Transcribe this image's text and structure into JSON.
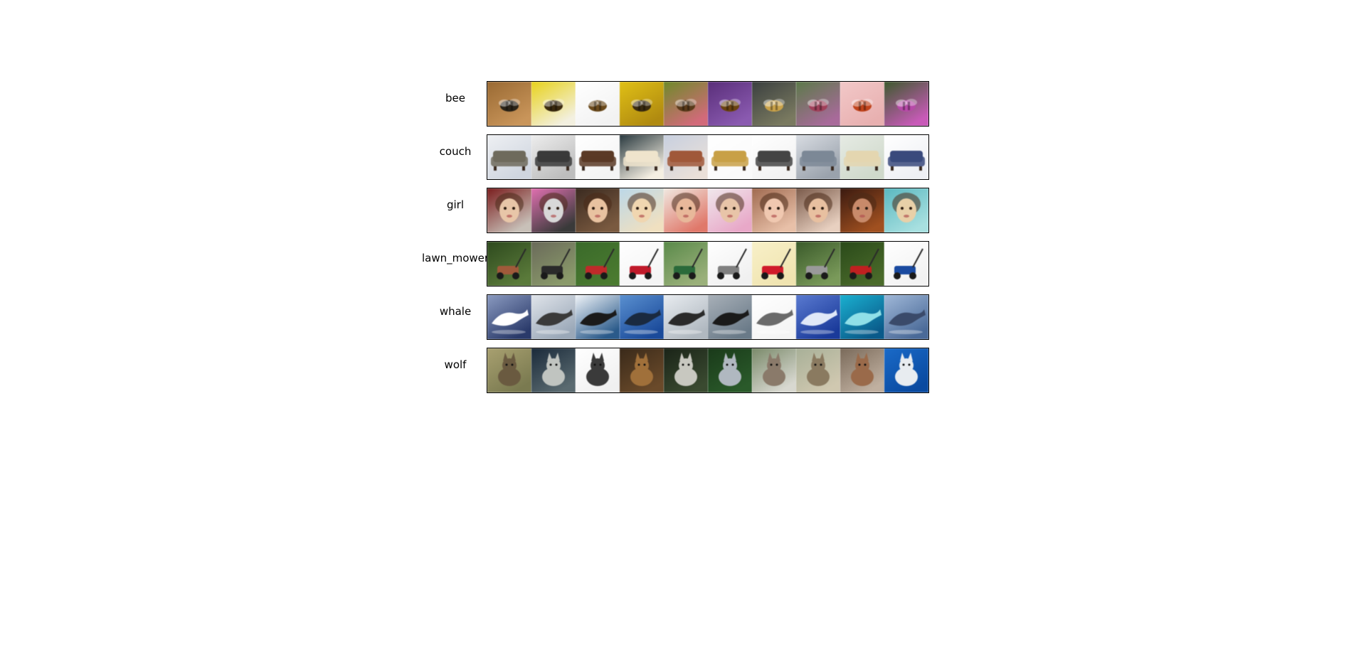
{
  "rows": [
    {
      "label": "bee",
      "tiles": [
        {
          "subject": "bee",
          "bg": [
            "#9a6a33",
            "#c9955a"
          ],
          "fg": "#2b2418"
        },
        {
          "subject": "bee",
          "bg": [
            "#e8d21c",
            "#f3f0e0"
          ],
          "fg": "#3a2a0e"
        },
        {
          "subject": "bee",
          "bg": [
            "#ffffff",
            "#f2f2f2"
          ],
          "fg": "#6b4a1c"
        },
        {
          "subject": "bee",
          "bg": [
            "#e0c016",
            "#b08a10"
          ],
          "fg": "#3a2b10"
        },
        {
          "subject": "bee",
          "bg": [
            "#6f8a2a",
            "#d26a7a"
          ],
          "fg": "#5a3a1a"
        },
        {
          "subject": "bee",
          "bg": [
            "#5a2f7a",
            "#8a5ab0"
          ],
          "fg": "#6a4210"
        },
        {
          "subject": "bee",
          "bg": [
            "#3b4040",
            "#7a7a60"
          ],
          "fg": "#c9a24a"
        },
        {
          "subject": "bee",
          "bg": [
            "#5c7a4a",
            "#a86a9a"
          ],
          "fg": "#a0405a"
        },
        {
          "subject": "bee",
          "bg": [
            "#f2c8c8",
            "#e8b0b0"
          ],
          "fg": "#c0431c"
        },
        {
          "subject": "bee",
          "bg": [
            "#3e5a2e",
            "#c85ab8"
          ],
          "fg": "#b74aa8"
        }
      ]
    },
    {
      "label": "couch",
      "tiles": [
        {
          "subject": "couch",
          "bg": [
            "#eef0f3",
            "#cfd5df"
          ],
          "fg": "#6e6a5c"
        },
        {
          "subject": "couch",
          "bg": [
            "#ededed",
            "#bdbdbd"
          ],
          "fg": "#3a3a3a"
        },
        {
          "subject": "couch",
          "bg": [
            "#ffffff",
            "#f4f4f4"
          ],
          "fg": "#5b3a26"
        },
        {
          "subject": "couch",
          "bg": [
            "#2a3a40",
            "#f5efe2"
          ],
          "fg": "#efe4cc"
        },
        {
          "subject": "couch",
          "bg": [
            "#c8d0e0",
            "#eae0d8"
          ],
          "fg": "#a0583a"
        },
        {
          "subject": "couch",
          "bg": [
            "#ffffff",
            "#fafafa"
          ],
          "fg": "#c8a046"
        },
        {
          "subject": "couch",
          "bg": [
            "#ffffff",
            "#f2f2f2"
          ],
          "fg": "#444444"
        },
        {
          "subject": "couch",
          "bg": [
            "#d8dce2",
            "#9aa2ac"
          ],
          "fg": "#7c8896"
        },
        {
          "subject": "couch",
          "bg": [
            "#e6ebe4",
            "#cfd9cb"
          ],
          "fg": "#e4d6b0"
        },
        {
          "subject": "couch",
          "bg": [
            "#ffffff",
            "#eef0f4"
          ],
          "fg": "#3a4a7c"
        }
      ]
    },
    {
      "label": "girl",
      "tiles": [
        {
          "subject": "face",
          "bg": [
            "#7a1e1e",
            "#c8c0b8"
          ],
          "fg": "#e8c6a8"
        },
        {
          "subject": "face",
          "bg": [
            "#e070b0",
            "#3a3a3a"
          ],
          "fg": "#d8d8d8"
        },
        {
          "subject": "face",
          "bg": [
            "#3a2a20",
            "#7a5a40"
          ],
          "fg": "#e8c2a0"
        },
        {
          "subject": "face",
          "bg": [
            "#bcd8e8",
            "#f0e0c0"
          ],
          "fg": "#f0d6b0"
        },
        {
          "subject": "face",
          "bg": [
            "#f0e8e0",
            "#e0786a"
          ],
          "fg": "#e8b89a"
        },
        {
          "subject": "face",
          "bg": [
            "#f0e8ec",
            "#e8a8c8"
          ],
          "fg": "#e8c4a8"
        },
        {
          "subject": "face",
          "bg": [
            "#a06a50",
            "#e8c0a8"
          ],
          "fg": "#f0c8b0"
        },
        {
          "subject": "face",
          "bg": [
            "#7a5a4a",
            "#e8d0c0"
          ],
          "fg": "#e8c0a0"
        },
        {
          "subject": "face",
          "bg": [
            "#3a1a10",
            "#a05020"
          ],
          "fg": "#c88a6a"
        },
        {
          "subject": "face",
          "bg": [
            "#5ab8c0",
            "#a8e0e0"
          ],
          "fg": "#e8d0a8"
        }
      ]
    },
    {
      "label": "lawn_mower",
      "tiles": [
        {
          "subject": "mower",
          "bg": [
            "#2e4a1e",
            "#5a7a3a"
          ],
          "fg": "#a05a3a"
        },
        {
          "subject": "mower",
          "bg": [
            "#6a6a5a",
            "#8a9a6a"
          ],
          "fg": "#2a2a2a"
        },
        {
          "subject": "mower",
          "bg": [
            "#3a6a2a",
            "#4a7a30"
          ],
          "fg": "#c02a2a"
        },
        {
          "subject": "mower",
          "bg": [
            "#ffffff",
            "#f4f4f4"
          ],
          "fg": "#c01a2a"
        },
        {
          "subject": "mower",
          "bg": [
            "#5a8a4a",
            "#9ab07a"
          ],
          "fg": "#2a6a3a"
        },
        {
          "subject": "mower",
          "bg": [
            "#ffffff",
            "#f0f0f0"
          ],
          "fg": "#808080"
        },
        {
          "subject": "mower",
          "bg": [
            "#f8f0c8",
            "#f0e4b0"
          ],
          "fg": "#d01a2a"
        },
        {
          "subject": "mower",
          "bg": [
            "#3a5a2a",
            "#7a9a5a"
          ],
          "fg": "#9a9a9a"
        },
        {
          "subject": "mower",
          "bg": [
            "#2a4a1a",
            "#4a6a2a"
          ],
          "fg": "#c02020"
        },
        {
          "subject": "mower",
          "bg": [
            "#ffffff",
            "#f2f2f2"
          ],
          "fg": "#1a4aa0"
        }
      ]
    },
    {
      "label": "whale",
      "tiles": [
        {
          "subject": "whale",
          "bg": [
            "#8a9ac0",
            "#2a3a6a"
          ],
          "fg": "#ffffff"
        },
        {
          "subject": "whale",
          "bg": [
            "#e0e4ea",
            "#9aa8b8"
          ],
          "fg": "#3a3a3a"
        },
        {
          "subject": "whale",
          "bg": [
            "#f0f4f8",
            "#2a5a8a"
          ],
          "fg": "#1a1a1a"
        },
        {
          "subject": "whale",
          "bg": [
            "#5a90d0",
            "#1a4a9a"
          ],
          "fg": "#1a2a40"
        },
        {
          "subject": "whale",
          "bg": [
            "#e8ecf0",
            "#b0b8c0"
          ],
          "fg": "#2a2a2a"
        },
        {
          "subject": "whale",
          "bg": [
            "#a8b0b8",
            "#6a7a88"
          ],
          "fg": "#1a1a1a"
        },
        {
          "subject": "whale",
          "bg": [
            "#ffffff",
            "#f4f4f4"
          ],
          "fg": "#6a6a6a"
        },
        {
          "subject": "whale",
          "bg": [
            "#5a7ad0",
            "#1a3a9a"
          ],
          "fg": "#e0e8f8"
        },
        {
          "subject": "whale",
          "bg": [
            "#1ab0d0",
            "#0a5a8a"
          ],
          "fg": "#90e0e8"
        },
        {
          "subject": "whale",
          "bg": [
            "#a0b8d8",
            "#4a6a98"
          ],
          "fg": "#3a4a6a"
        }
      ]
    },
    {
      "label": "wolf",
      "tiles": [
        {
          "subject": "wolf",
          "bg": [
            "#a8a070",
            "#7a7a50"
          ],
          "fg": "#6a5a40"
        },
        {
          "subject": "wolf",
          "bg": [
            "#1a2a3a",
            "#5a6a70"
          ],
          "fg": "#c0c4c0"
        },
        {
          "subject": "wolf",
          "bg": [
            "#ffffff",
            "#f0f0f0"
          ],
          "fg": "#3a3a3a"
        },
        {
          "subject": "wolf",
          "bg": [
            "#3a2a1a",
            "#6a4a2a"
          ],
          "fg": "#a0703a"
        },
        {
          "subject": "wolf",
          "bg": [
            "#1a2418",
            "#3a4a30"
          ],
          "fg": "#c8c8c0"
        },
        {
          "subject": "wolf",
          "bg": [
            "#1a3a1a",
            "#2a5a2a"
          ],
          "fg": "#b0b8c0"
        },
        {
          "subject": "wolf",
          "bg": [
            "#7a8a6a",
            "#d8d8d0"
          ],
          "fg": "#8a7a6a"
        },
        {
          "subject": "wolf",
          "bg": [
            "#a8b098",
            "#d0c8b0"
          ],
          "fg": "#8a7a60"
        },
        {
          "subject": "wolf",
          "bg": [
            "#7a6a5a",
            "#c0b0a0"
          ],
          "fg": "#9a6a4a"
        },
        {
          "subject": "wolf",
          "bg": [
            "#1a6ac8",
            "#0a4aa0"
          ],
          "fg": "#e8ecf0"
        }
      ]
    }
  ]
}
